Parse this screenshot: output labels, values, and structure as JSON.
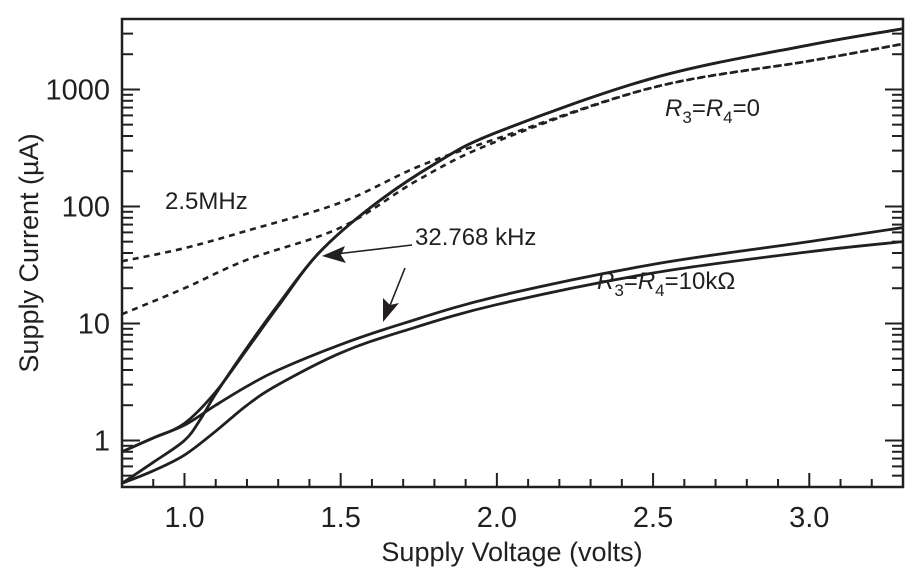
{
  "chart_data": {
    "type": "line",
    "title": "",
    "xlabel": "Supply Voltage (volts)",
    "ylabel": "Supply Current (µA)",
    "xlim": [
      0.8,
      3.3
    ],
    "ylim": [
      0.4,
      4000
    ],
    "yscale": "log",
    "grid": false,
    "x_ticks": [
      "1.0",
      "1.5",
      "2.0",
      "2.5",
      "3.0"
    ],
    "y_ticks": [
      "1",
      "10",
      "100",
      "1000"
    ],
    "colors": {
      "ink": "#231f20"
    },
    "series": [
      {
        "style": "solid",
        "points": [
          [
            0.8,
            0.8
          ],
          [
            0.9,
            1.05
          ],
          [
            1.0,
            1.4
          ],
          [
            1.1,
            2.6
          ],
          [
            1.2,
            6
          ],
          [
            1.3,
            14
          ],
          [
            1.43,
            40
          ],
          [
            1.6,
            100
          ],
          [
            1.8,
            230
          ],
          [
            2.0,
            430
          ],
          [
            2.5,
            1250
          ],
          [
            3.0,
            2400
          ],
          [
            3.3,
            3300
          ]
        ]
      },
      {
        "style": "solid",
        "points": [
          [
            0.8,
            0.43
          ],
          [
            0.9,
            0.65
          ],
          [
            1.0,
            1.0
          ],
          [
            1.05,
            1.5
          ],
          [
            1.1,
            2.5
          ],
          [
            1.2,
            6.2
          ],
          [
            1.3,
            14.5
          ],
          [
            1.43,
            40
          ],
          [
            1.6,
            100
          ],
          [
            1.8,
            230
          ],
          [
            2.0,
            430
          ],
          [
            2.5,
            1250
          ],
          [
            3.0,
            2400
          ],
          [
            3.3,
            3300
          ]
        ]
      },
      {
        "style": "solid",
        "points": [
          [
            0.8,
            0.8
          ],
          [
            0.9,
            1.05
          ],
          [
            1.0,
            1.35
          ],
          [
            1.1,
            2.0
          ],
          [
            1.2,
            2.9
          ],
          [
            1.3,
            4.0
          ],
          [
            1.5,
            6.6
          ],
          [
            1.7,
            10
          ],
          [
            2.0,
            17
          ],
          [
            2.5,
            32
          ],
          [
            3.0,
            50
          ],
          [
            3.3,
            66
          ]
        ]
      },
      {
        "style": "solid",
        "points": [
          [
            0.8,
            0.43
          ],
          [
            0.9,
            0.55
          ],
          [
            1.0,
            0.75
          ],
          [
            1.1,
            1.2
          ],
          [
            1.2,
            2.0
          ],
          [
            1.3,
            3.0
          ],
          [
            1.5,
            5.6
          ],
          [
            1.7,
            8.6
          ],
          [
            2.0,
            14.5
          ],
          [
            2.5,
            27
          ],
          [
            3.0,
            41
          ],
          [
            3.3,
            50
          ]
        ]
      },
      {
        "style": "dashed",
        "points": [
          [
            0.8,
            34
          ],
          [
            1.0,
            44
          ],
          [
            1.2,
            62
          ],
          [
            1.5,
            108
          ],
          [
            1.75,
            220
          ],
          [
            2.0,
            380
          ],
          [
            2.5,
            1040
          ],
          [
            3.0,
            1750
          ],
          [
            3.3,
            2450
          ]
        ]
      },
      {
        "style": "dashed",
        "points": [
          [
            0.8,
            12
          ],
          [
            1.0,
            20
          ],
          [
            1.2,
            35
          ],
          [
            1.5,
            66
          ],
          [
            1.75,
            170
          ],
          [
            2.0,
            360
          ],
          [
            2.5,
            1040
          ],
          [
            3.0,
            1750
          ],
          [
            3.3,
            2450
          ]
        ]
      }
    ],
    "annotations": {
      "freq_high": "2.5MHz",
      "freq_low": "32.768 kHz",
      "r0": {
        "r3": "R",
        "sub3": "3",
        "eq1": "=",
        "r4": "R",
        "sub4": "4",
        "tail": "=0"
      },
      "r10k": {
        "r3": "R",
        "sub3": "3",
        "eq1": "=",
        "r4": "R",
        "sub4": "4",
        "tail": "=10kΩ"
      }
    }
  }
}
